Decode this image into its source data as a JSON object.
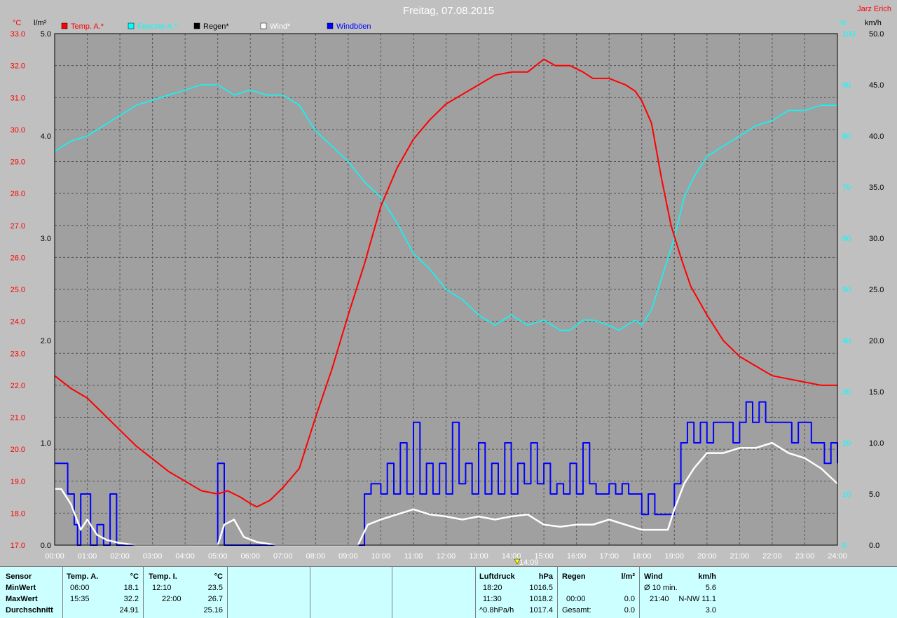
{
  "title": "Freitag, 07.08.2015",
  "author": "Jarz Erich",
  "marker_time": "14:09",
  "chart_data": {
    "type": "line",
    "x_ticks": [
      "00:00",
      "01:00",
      "02:00",
      "03:00",
      "04:00",
      "05:00",
      "06:00",
      "07:00",
      "08:00",
      "09:00",
      "10:00",
      "11:00",
      "12:00",
      "13:00",
      "14:00",
      "15:00",
      "16:00",
      "17:00",
      "18:00",
      "19:00",
      "20:00",
      "21:00",
      "22:00",
      "23:00",
      "24:00"
    ],
    "axes": {
      "temp": {
        "label": "°C",
        "range": [
          17,
          33
        ],
        "ticks": [
          "17.0",
          "18.0",
          "19.0",
          "20.0",
          "21.0",
          "22.0",
          "23.0",
          "24.0",
          "25.0",
          "26.0",
          "27.0",
          "28.0",
          "29.0",
          "30.0",
          "31.0",
          "32.0",
          "33.0"
        ],
        "color": "#ff0000"
      },
      "rain": {
        "label": "l/m²",
        "range": [
          0,
          5
        ],
        "ticks": [
          "0.0",
          "1.0",
          "2.0",
          "3.0",
          "4.0",
          "5.0"
        ],
        "color": "#000000"
      },
      "humidity": {
        "label": "%",
        "range": [
          0,
          100
        ],
        "ticks": [
          "0",
          "10",
          "20",
          "30",
          "40",
          "50",
          "60",
          "70",
          "80",
          "90",
          "100"
        ],
        "color": "#00ffff"
      },
      "wind": {
        "label": "km/h",
        "range": [
          0,
          50
        ],
        "ticks": [
          "0.0",
          "5.0",
          "10.0",
          "15.0",
          "20.0",
          "25.0",
          "30.0",
          "35.0",
          "40.0",
          "45.0",
          "50.0"
        ],
        "color": "#000000"
      }
    },
    "legend": [
      {
        "name": "Temp. A.*",
        "color": "#ff0000"
      },
      {
        "name": "Feuchte A.*",
        "color": "#00ffff"
      },
      {
        "name": "Regen*",
        "color": "#000000"
      },
      {
        "name": "Wind*",
        "color": "#ffffff"
      },
      {
        "name": "Windböen",
        "color": "#0000ff"
      }
    ],
    "series": [
      {
        "name": "Temp. A.*",
        "axis": "temp",
        "color": "#ff0000",
        "x": [
          0,
          0.5,
          1,
          1.5,
          2,
          2.5,
          3,
          3.5,
          4,
          4.5,
          5,
          5.3,
          5.7,
          6,
          6.2,
          6.6,
          7,
          7.5,
          8,
          8.5,
          9,
          9.5,
          10,
          10.5,
          11,
          11.5,
          12,
          12.5,
          13,
          13.5,
          14,
          14.5,
          15,
          15.35,
          15.8,
          16.2,
          16.5,
          17,
          17.5,
          17.8,
          18,
          18.3,
          18.6,
          18.9,
          19.2,
          19.5,
          20,
          20.5,
          21,
          21.5,
          22,
          22.5,
          23,
          23.5,
          24
        ],
        "y": [
          22.3,
          21.9,
          21.6,
          21.1,
          20.6,
          20.1,
          19.7,
          19.3,
          19.0,
          18.7,
          18.6,
          18.7,
          18.5,
          18.3,
          18.2,
          18.4,
          18.8,
          19.4,
          21.0,
          22.5,
          24.2,
          25.8,
          27.6,
          28.8,
          29.7,
          30.3,
          30.8,
          31.1,
          31.4,
          31.7,
          31.8,
          31.8,
          32.2,
          32.0,
          32.0,
          31.8,
          31.6,
          31.6,
          31.4,
          31.2,
          30.9,
          30.2,
          28.5,
          27.0,
          26.0,
          25.1,
          24.2,
          23.4,
          22.9,
          22.6,
          22.3,
          22.2,
          22.1,
          22.0,
          22.0
        ]
      },
      {
        "name": "Feuchte A.*",
        "axis": "humidity",
        "color": "#00ffff",
        "x": [
          0,
          0.5,
          1,
          1.5,
          2,
          2.5,
          3,
          3.5,
          4,
          4.5,
          5,
          5.5,
          6,
          6.5,
          7,
          7.5,
          8,
          8.5,
          9,
          9.5,
          10,
          10.5,
          11,
          11.5,
          12,
          12.5,
          13,
          13.5,
          14,
          14.5,
          15,
          15.5,
          15.8,
          16.2,
          16.5,
          17,
          17.3,
          17.8,
          18,
          18.3,
          18.6,
          19,
          19.3,
          19.6,
          20,
          20.5,
          21,
          21.5,
          22,
          22.5,
          23,
          23.5,
          24
        ],
        "y": [
          77,
          79,
          80,
          82,
          84,
          86,
          87,
          88,
          89,
          90,
          90,
          88,
          89,
          88,
          88,
          86,
          81,
          78,
          75,
          71,
          68,
          63,
          57,
          54,
          50,
          48,
          45,
          43,
          45,
          43,
          44,
          42,
          42,
          44,
          44,
          43,
          42,
          44,
          43,
          46,
          52,
          60,
          68,
          72,
          76,
          78,
          80,
          82,
          83,
          85,
          85,
          86,
          86
        ]
      },
      {
        "name": "Wind*",
        "axis": "wind",
        "color": "#ffffff",
        "x": [
          0,
          0.2,
          0.5,
          0.8,
          1,
          1.3,
          1.6,
          2,
          2.5,
          3,
          4,
          5,
          5.2,
          5.5,
          5.8,
          6.2,
          6.8,
          8,
          9,
          9.3,
          9.6,
          10,
          10.5,
          11,
          11.5,
          12,
          12.5,
          13,
          13.5,
          14,
          14.5,
          15,
          15.5,
          16,
          16.5,
          17,
          17.5,
          18,
          18.5,
          18.8,
          19,
          19.3,
          19.6,
          20,
          20.5,
          21,
          21.5,
          22,
          22.5,
          23,
          23.5,
          24
        ],
        "y": [
          5.5,
          5.5,
          4.0,
          1.5,
          2.5,
          1.0,
          0.5,
          0.2,
          0,
          0,
          0,
          0,
          2.0,
          2.5,
          0.8,
          0.3,
          0,
          0,
          0,
          0,
          2.0,
          2.5,
          3.0,
          3.5,
          3.0,
          2.8,
          2.5,
          2.8,
          2.5,
          2.8,
          3.0,
          2.0,
          1.8,
          2.0,
          2.0,
          2.5,
          2.0,
          1.5,
          1.5,
          1.5,
          3.5,
          6.0,
          7.5,
          9.0,
          9.0,
          9.5,
          9.5,
          10.0,
          9.0,
          8.5,
          7.5,
          6.0
        ]
      },
      {
        "name": "Windböen",
        "axis": "wind",
        "color": "#0000ff",
        "x": [
          0,
          0.2,
          0.4,
          0.6,
          0.7,
          0.8,
          1,
          1.1,
          1.3,
          1.5,
          1.7,
          1.9,
          2,
          4.8,
          5,
          5.2,
          5.4,
          9.3,
          9.5,
          9.7,
          10,
          10.2,
          10.4,
          10.6,
          10.8,
          11,
          11.2,
          11.4,
          11.6,
          11.8,
          12,
          12.2,
          12.4,
          12.6,
          12.8,
          13,
          13.2,
          13.4,
          13.6,
          13.8,
          14,
          14.2,
          14.4,
          14.6,
          14.8,
          15,
          15.2,
          15.4,
          15.6,
          15.8,
          16,
          16.2,
          16.4,
          16.6,
          16.8,
          17,
          17.2,
          17.4,
          17.6,
          17.8,
          18,
          18.2,
          18.4,
          18.6,
          18.8,
          19,
          19.2,
          19.4,
          19.6,
          19.8,
          20,
          20.2,
          20.4,
          20.6,
          20.8,
          21,
          21.2,
          21.4,
          21.6,
          21.8,
          22,
          22.2,
          22.4,
          22.6,
          22.8,
          23,
          23.2,
          23.4,
          23.6,
          23.8,
          24
        ],
        "y": [
          8,
          8,
          5,
          2,
          0,
          5,
          5,
          0,
          2,
          0,
          5,
          0,
          0,
          0,
          8,
          0,
          0,
          0,
          5,
          6,
          5,
          8,
          5,
          10,
          5,
          12,
          5,
          8,
          5,
          8,
          5,
          12,
          6,
          8,
          5,
          10,
          5,
          8,
          5,
          10,
          5,
          8,
          6,
          10,
          6,
          8,
          5,
          6,
          5,
          8,
          5,
          10,
          6,
          5,
          5,
          6,
          5,
          6,
          5,
          5,
          3,
          5,
          3,
          3,
          3,
          6,
          10,
          12,
          10,
          12,
          10,
          12,
          12,
          12,
          10,
          12,
          14,
          12,
          14,
          12,
          12,
          12,
          12,
          10,
          12,
          12,
          10,
          10,
          8,
          10,
          8
        ]
      }
    ]
  },
  "panel": {
    "sensor": {
      "header": "Sensor",
      "rows": [
        "MinWert",
        "MaxWert",
        "Durchschnitt"
      ]
    },
    "temp_a": {
      "header": "Temp. A.",
      "unit": "°C",
      "min_time": "06:00",
      "min_val": "18.1",
      "max_time": "15:35",
      "max_val": "32.2",
      "avg": "24.91"
    },
    "temp_i": {
      "header": "Temp. I.",
      "unit": "°C",
      "min_time": "12:10",
      "min_val": "23.5",
      "max_time": "22:00",
      "max_val": "26.7",
      "avg": "25.16"
    },
    "pressure": {
      "header": "Luftdruck",
      "unit": "hPa",
      "min_time": "18:20",
      "min_val": "1016.5",
      "max_time": "11:30",
      "max_val": "1018.2",
      "trend": "^0.8hPa/h",
      "trend_val": "1017.4"
    },
    "rain": {
      "header": "Regen",
      "unit": "l/m²",
      "max_time": "00:00",
      "max_val": "0.0",
      "total_label": "Gesamt:",
      "total_val": "0.0"
    },
    "wind": {
      "header": "Wind",
      "unit": "km/h",
      "avg_label": "Ø 10 min.",
      "avg_val": "5.6",
      "max_time": "21:40",
      "max_val": "N-NW 11.1",
      "day_avg": "3.0"
    }
  }
}
